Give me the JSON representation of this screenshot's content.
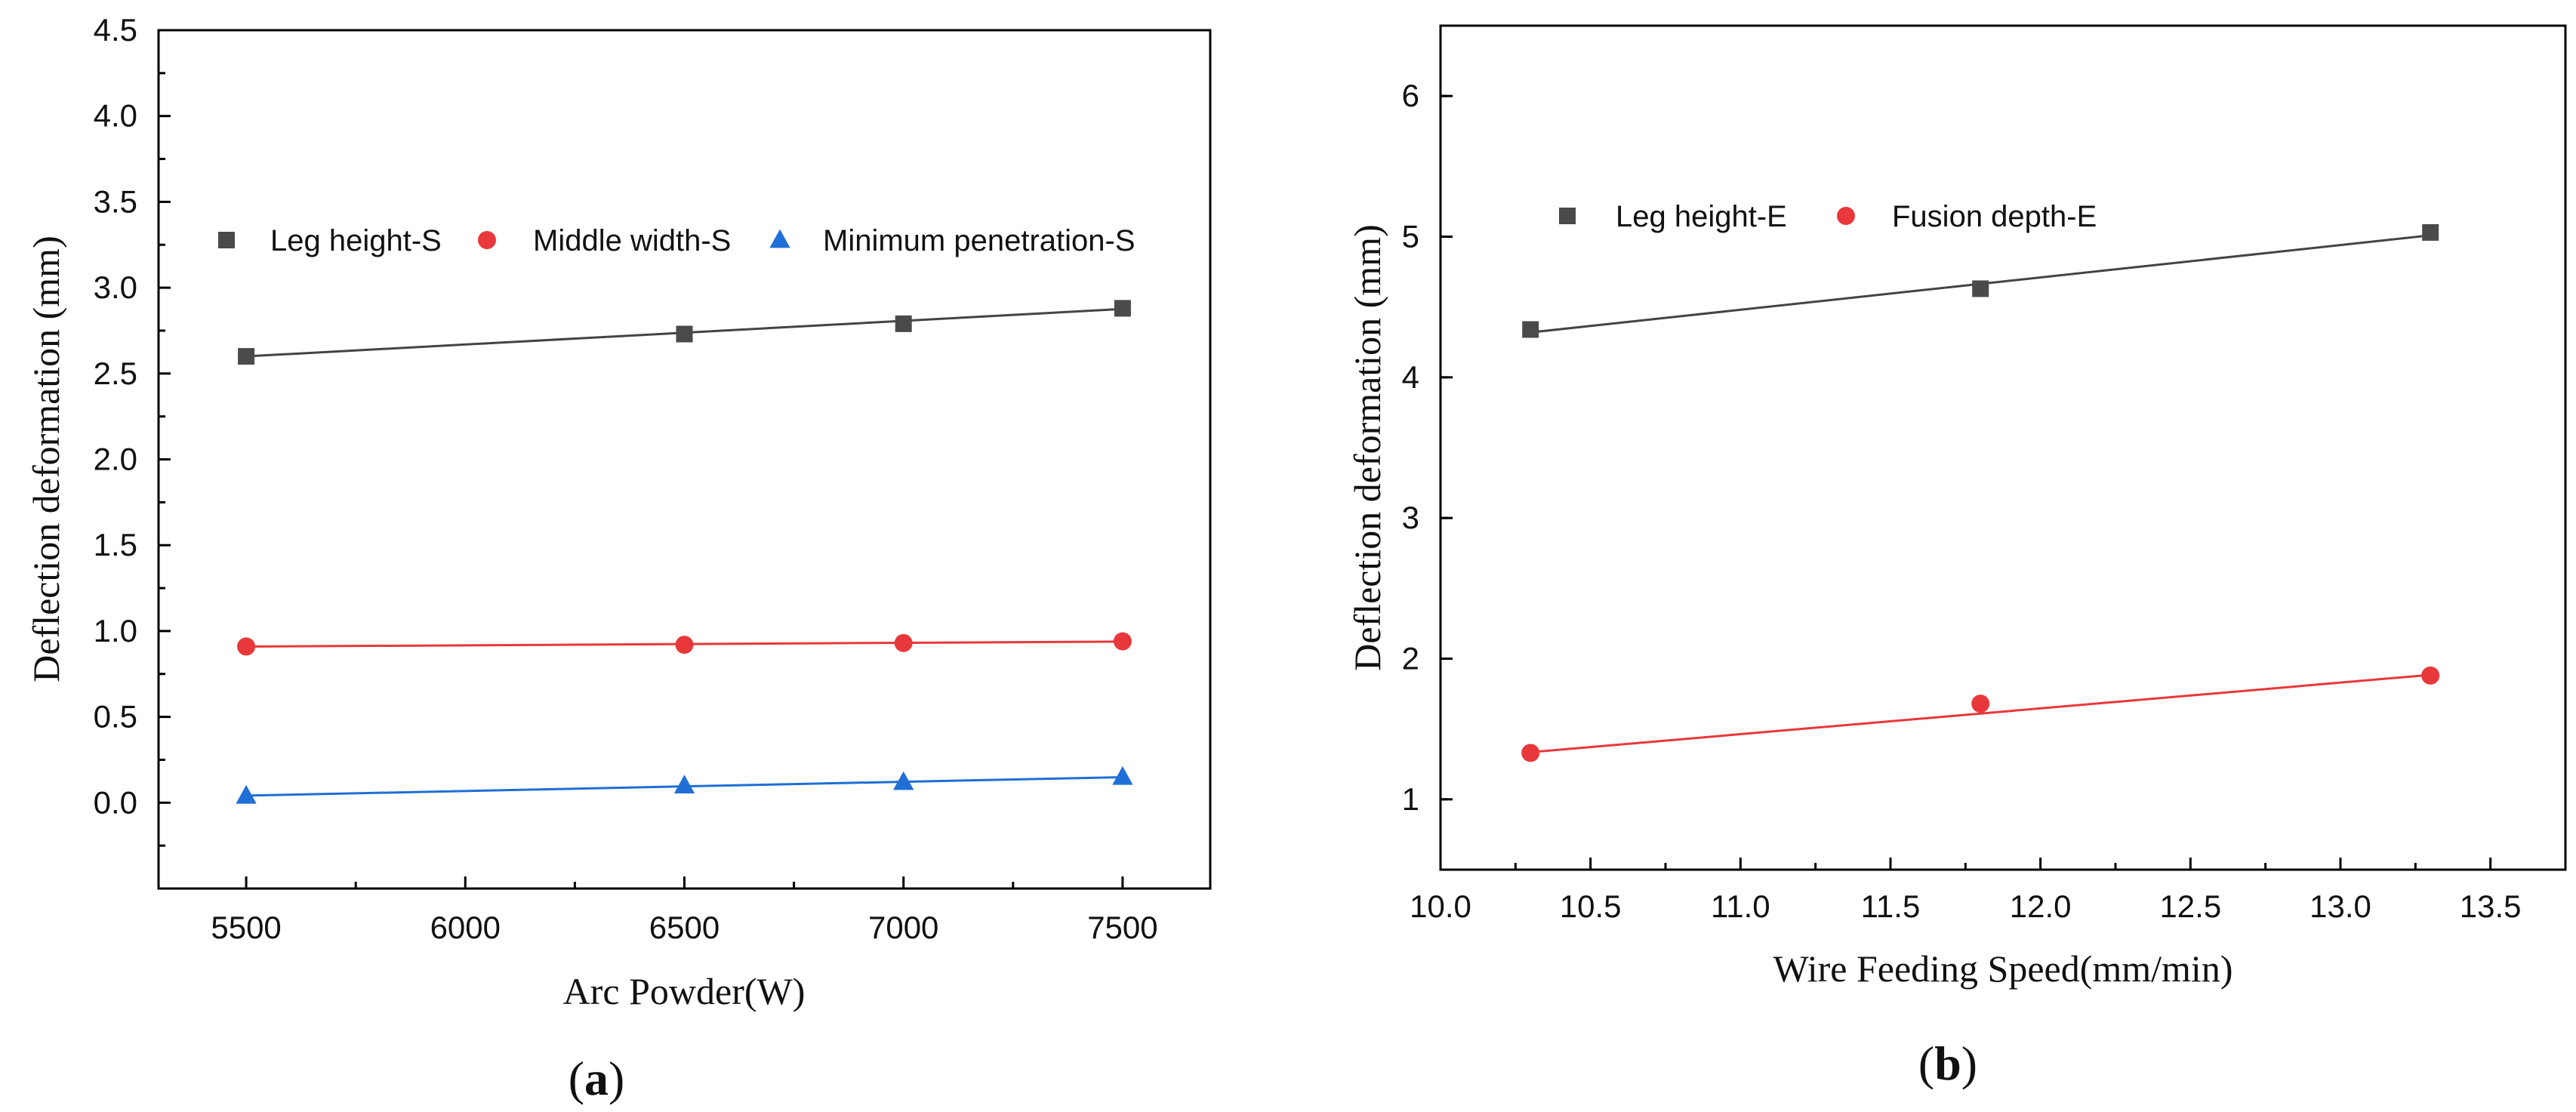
{
  "chart_data": [
    {
      "type": "line",
      "panel_label": "a",
      "title": "",
      "xlabel": "Arc Powder(W)",
      "ylabel": "Deflection deformation (mm)",
      "xlim": [
        5300,
        7700
      ],
      "ylim": [
        -0.5,
        4.5
      ],
      "xticks": [
        5500,
        6000,
        6500,
        7000,
        7500
      ],
      "xtick_labels": [
        "5500",
        "6000",
        "6500",
        "7000",
        "7500"
      ],
      "yticks": [
        0.0,
        0.5,
        1.0,
        1.5,
        2.0,
        2.5,
        3.0,
        3.5,
        4.0,
        4.5
      ],
      "ytick_labels": [
        "0.0",
        "0.5",
        "1.0",
        "1.5",
        "2.0",
        "2.5",
        "3.0",
        "3.5",
        "4.0",
        "4.5"
      ],
      "legend_position": "upper-middle",
      "series": [
        {
          "name": "Leg height-S",
          "marker": "square",
          "color": "#4a4a4a",
          "line_color": "#444444",
          "x": [
            5500,
            6500,
            7000,
            7500
          ],
          "values": [
            2.6,
            2.73,
            2.79,
            2.88
          ],
          "fit": {
            "slope": 0.000138,
            "intercept": 1.841
          }
        },
        {
          "name": "Middle width-S",
          "marker": "circle",
          "color": "#e8383b",
          "line_color": "#e8383b",
          "x": [
            5500,
            6500,
            7000,
            7500
          ],
          "values": [
            0.91,
            0.92,
            0.93,
            0.94
          ],
          "fit": {
            "slope": 1.46e-05,
            "intercept": 0.8292
          }
        },
        {
          "name": "Minimum penetration-S",
          "marker": "triangle",
          "color": "#1f6fd6",
          "line_color": "#1f6fd6",
          "x": [
            5500,
            6500,
            7000,
            7500
          ],
          "values": [
            0.04,
            0.1,
            0.12,
            0.15
          ],
          "fit": {
            "slope": 5.38e-05,
            "intercept": -0.2546
          }
        }
      ]
    },
    {
      "type": "line",
      "panel_label": "b",
      "title": "",
      "xlabel": "Wire Feeding Speed(mm/min)",
      "ylabel": "Deflection deformation (mm)",
      "xlim": [
        10.0,
        13.75
      ],
      "ylim": [
        0.5,
        6.5
      ],
      "xticks": [
        10.0,
        10.5,
        11.0,
        11.5,
        12.0,
        12.5,
        13.0,
        13.5
      ],
      "xtick_labels": [
        "10.0",
        "10.5",
        "11.0",
        "11.5",
        "12.0",
        "12.5",
        "13.0",
        "13.5"
      ],
      "yticks": [
        1,
        2,
        3,
        4,
        5,
        6
      ],
      "ytick_labels": [
        "1",
        "2",
        "3",
        "4",
        "5",
        "6"
      ],
      "legend_position": "upper-left",
      "series": [
        {
          "name": "Leg height-E",
          "marker": "square",
          "color": "#4a4a4a",
          "line_color": "#444444",
          "x": [
            10.3,
            11.8,
            13.3
          ],
          "values": [
            4.34,
            4.63,
            5.03
          ],
          "fit": {
            "slope": 0.23,
            "intercept": 1.9503
          }
        },
        {
          "name": "Fusion depth-E",
          "marker": "circle",
          "color": "#e8383b",
          "line_color": "#e8383b",
          "x": [
            10.3,
            11.8,
            13.3
          ],
          "values": [
            1.33,
            1.68,
            1.88
          ],
          "fit": {
            "slope": 0.1833,
            "intercept": -0.553
          }
        }
      ]
    }
  ]
}
